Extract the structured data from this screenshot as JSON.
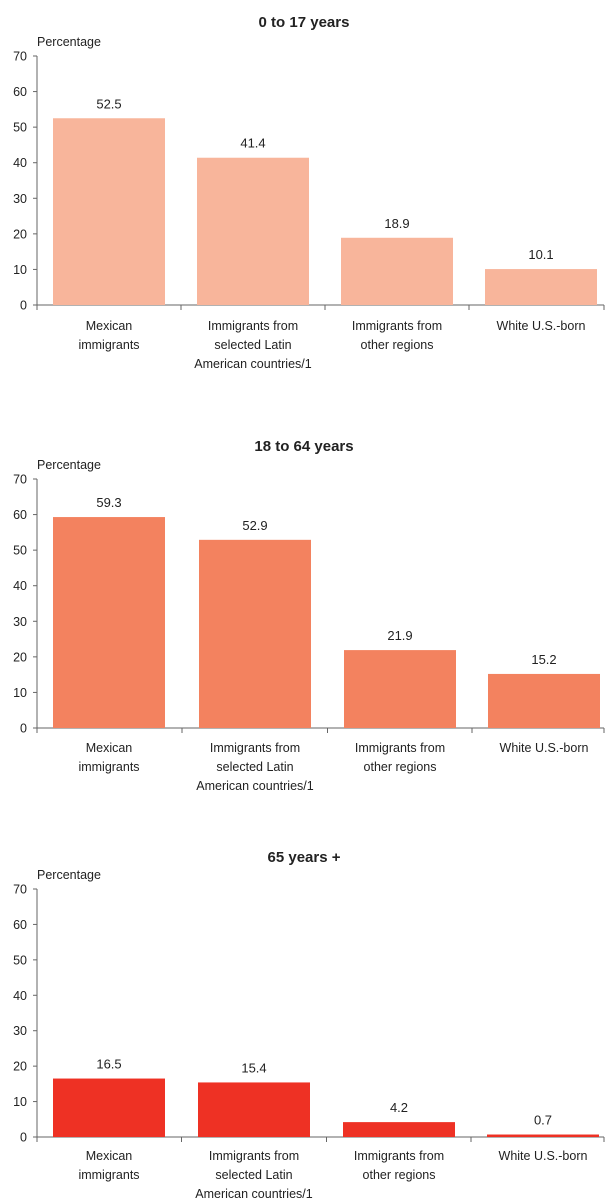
{
  "chart_data": [
    {
      "type": "bar",
      "title": "0 to 17 years",
      "ylabel": "Percentage",
      "xlabel": "",
      "ylim": [
        0,
        70
      ],
      "yticks": [
        0,
        10,
        20,
        30,
        40,
        50,
        60,
        70
      ],
      "categories": [
        "Mexican immigrants",
        "Immigrants from selected Latin American countries/1",
        "Immigrants from other regions",
        "White U.S.-born"
      ],
      "values": [
        52.5,
        41.4,
        18.9,
        10.1
      ],
      "value_labels": [
        "52.5",
        "41.4",
        "18.9",
        "10.1"
      ],
      "bar_color": "#f8b59b"
    },
    {
      "type": "bar",
      "title": "18 to 64 years",
      "ylabel": "Percentage",
      "xlabel": "",
      "ylim": [
        0,
        70
      ],
      "yticks": [
        0,
        10,
        20,
        30,
        40,
        50,
        60,
        70
      ],
      "categories": [
        "Mexican immigrants",
        "Immigrants from selected Latin American countries/1",
        "Immigrants from other regions",
        "White U.S.-born"
      ],
      "values": [
        59.3,
        52.9,
        21.9,
        15.2
      ],
      "value_labels": [
        "59.3",
        "52.9",
        "21.9",
        "15.2"
      ],
      "bar_color": "#f3825f"
    },
    {
      "type": "bar",
      "title": "65 years +",
      "ylabel": "Percentage",
      "xlabel": "",
      "ylim": [
        0,
        70
      ],
      "yticks": [
        0,
        10,
        20,
        30,
        40,
        50,
        60,
        70
      ],
      "categories": [
        "Mexican immigrants",
        "Immigrants from selected Latin American countries/1",
        "Immigrants from other regions",
        "White U.S.-born"
      ],
      "values": [
        16.5,
        15.4,
        4.2,
        0.7
      ],
      "value_labels": [
        "16.5",
        "15.4",
        "4.2",
        "0.7"
      ],
      "bar_color": "#ee3124"
    }
  ],
  "category_label_lines": [
    [
      "Mexican",
      "immigrants"
    ],
    [
      "Immigrants from",
      "selected Latin",
      "American countries/1"
    ],
    [
      "Immigrants from",
      "other regions"
    ],
    [
      "White U.S.-born"
    ]
  ]
}
